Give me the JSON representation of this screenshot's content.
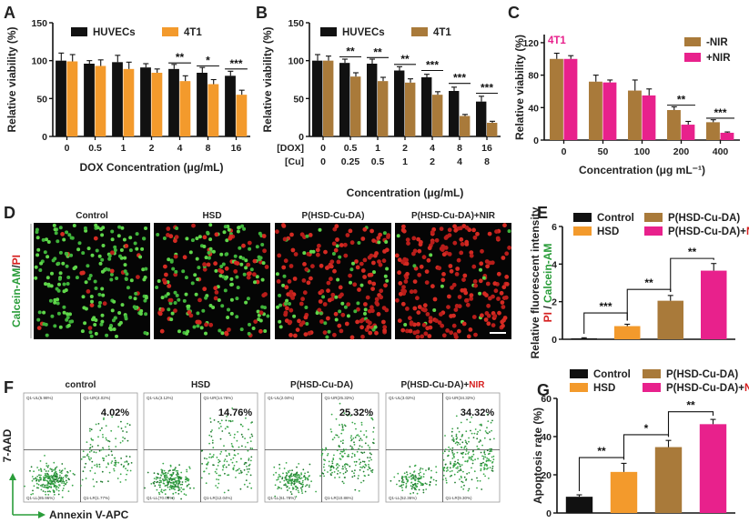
{
  "chart_data": [
    {
      "panel": "A",
      "type": "bar",
      "ylabel": "Relative viability (%)",
      "xlabel": "DOX Concentration (μg/mL)",
      "ylim": [
        0,
        150
      ],
      "yticks": [
        "0",
        "50",
        "100",
        "150"
      ],
      "categories": [
        "0",
        "0.5",
        "1",
        "2",
        "4",
        "8",
        "16"
      ],
      "series": [
        {
          "name": "HUVECs",
          "color": "#111111",
          "values": [
            100,
            96,
            98,
            91,
            89,
            84,
            80
          ],
          "errors": [
            10,
            4,
            9,
            5,
            6,
            7,
            6
          ]
        },
        {
          "name": "4T1",
          "color": "#f39a2c",
          "values": [
            99,
            93,
            89,
            84,
            73,
            69,
            55
          ],
          "errors": [
            9,
            8,
            9,
            5,
            7,
            6,
            6
          ]
        }
      ],
      "significance": [
        {
          "category": 4,
          "label": "**",
          "y": 97
        },
        {
          "category": 5,
          "label": "*",
          "y": 93
        },
        {
          "category": 6,
          "label": "***",
          "y": 89
        }
      ]
    },
    {
      "panel": "B",
      "type": "bar",
      "ylabel": "Relative viability (%)",
      "xlabel": "Concentration (μg/mL)",
      "ylim": [
        0,
        150
      ],
      "yticks": [
        "0",
        "50",
        "100",
        "150"
      ],
      "row1_label": "[DOX]",
      "row2_label": "[Cu]",
      "categories": [
        "0",
        "0.5",
        "1",
        "2",
        "4",
        "8",
        "16"
      ],
      "categories2": [
        "0",
        "0.25",
        "0.5",
        "1",
        "2",
        "4",
        "8"
      ],
      "series": [
        {
          "name": "HUVECs",
          "color": "#111111",
          "values": [
            100,
            97,
            96,
            87,
            78,
            60,
            46
          ],
          "errors": [
            8,
            5,
            6,
            5,
            4,
            5,
            7
          ]
        },
        {
          "name": "4T1",
          "color": "#a97a3a",
          "values": [
            100,
            79,
            73,
            71,
            55,
            27,
            18
          ],
          "errors": [
            6,
            5,
            5,
            5,
            4,
            2,
            2
          ]
        }
      ],
      "significance": [
        {
          "category": 1,
          "label": "**",
          "y": 105
        },
        {
          "category": 2,
          "label": "**",
          "y": 104
        },
        {
          "category": 3,
          "label": "**",
          "y": 95
        },
        {
          "category": 4,
          "label": "***",
          "y": 87
        },
        {
          "category": 5,
          "label": "***",
          "y": 70
        },
        {
          "category": 6,
          "label": "***",
          "y": 57
        }
      ]
    },
    {
      "panel": "C",
      "type": "bar",
      "cell_line": "4T1",
      "ylabel": "Relative viability (%)",
      "xlabel": "Concentration (μg mL⁻¹)",
      "ylim": [
        0,
        130
      ],
      "yticks": [
        "0",
        "40",
        "80",
        "120"
      ],
      "categories": [
        "0",
        "50",
        "100",
        "200",
        "400"
      ],
      "series": [
        {
          "name": "-NIR",
          "color": "#a97a3a",
          "values": [
            100,
            72,
            61,
            37,
            22
          ],
          "errors": [
            7,
            8,
            13,
            4,
            3
          ]
        },
        {
          "name": "+NIR",
          "color": "#e8218c",
          "values": [
            100,
            71,
            55,
            19,
            9
          ],
          "errors": [
            4,
            3,
            8,
            4,
            1
          ]
        }
      ],
      "significance": [
        {
          "category": 3,
          "label": "**",
          "y": 43
        },
        {
          "category": 4,
          "label": "***",
          "y": 27
        }
      ]
    },
    {
      "panel": "E",
      "type": "bar",
      "ylabel": "Relative fluorescent intensity",
      "ylabel_parts": [
        "PI",
        " / ",
        "Calcein-AM"
      ],
      "ylim": [
        0,
        6
      ],
      "yticks": [
        "0",
        "2",
        "4",
        "6"
      ],
      "categories": [
        "Control",
        "HSD",
        "P(HSD-Cu-DA)",
        "P(HSD-Cu-DA)+NIR"
      ],
      "legend_parts": [
        [
          "Control",
          ""
        ],
        [
          "HSD",
          ""
        ],
        [
          "P(HSD-Cu-DA)",
          ""
        ],
        [
          "P(HSD-Cu-DA)+",
          "NIR"
        ]
      ],
      "values": [
        0.05,
        0.7,
        2.05,
        3.65
      ],
      "errors": [
        0.03,
        0.1,
        0.28,
        0.38
      ],
      "colors": [
        "#111111",
        "#f39a2c",
        "#a97a3a",
        "#e8218c"
      ],
      "significance": [
        {
          "from": 0,
          "to": 1,
          "label": "***",
          "y": 1.4
        },
        {
          "from": 1,
          "to": 2,
          "label": "**",
          "y": 2.65
        },
        {
          "from": 2,
          "to": 3,
          "label": "**",
          "y": 4.3
        }
      ]
    },
    {
      "panel": "G",
      "type": "bar",
      "ylabel": "Apoptosis rate (%)",
      "ylim": [
        0,
        60
      ],
      "yticks": [
        "0",
        "20",
        "40",
        "60"
      ],
      "categories": [
        "Control",
        "HSD",
        "P(HSD-Cu-DA)",
        "P(HSD-Cu-DA)+NIR"
      ],
      "legend_parts": [
        [
          "Control",
          ""
        ],
        [
          "HSD",
          ""
        ],
        [
          "P(HSD-Cu-DA)",
          ""
        ],
        [
          "P(HSD-Cu-DA)+",
          "NIR"
        ]
      ],
      "values": [
        8.5,
        21.5,
        34.5,
        46.5
      ],
      "errors": [
        1.0,
        4.5,
        3.5,
        2.5
      ],
      "colors": [
        "#111111",
        "#f39a2c",
        "#a97a3a",
        "#e8218c"
      ],
      "significance": [
        {
          "from": 0,
          "to": 1,
          "label": "**",
          "y": 29
        },
        {
          "from": 1,
          "to": 2,
          "label": "*",
          "y": 41
        },
        {
          "from": 2,
          "to": 3,
          "label": "**",
          "y": 53
        }
      ]
    }
  ],
  "panel_labels": {
    "A": "A",
    "B": "B",
    "C": "C",
    "D": "D",
    "E": "E",
    "F": "F",
    "G": "G"
  },
  "microscopy": {
    "ylabel_green": "Calcein-AM",
    "ylabel_sep": "/",
    "ylabel_red": "PI",
    "titles": [
      "Control",
      "HSD",
      "P(HSD-Cu-DA)",
      "P(HSD-Cu-DA)+NIR"
    ],
    "red_fraction": [
      0.08,
      0.3,
      0.78,
      0.93
    ]
  },
  "flow": {
    "titles": [
      "control",
      "HSD",
      "P(HSD-Cu-DA)",
      "P(HSD-Cu-DA)+NIR"
    ],
    "title_last_parts": [
      "P(HSD-Cu-DA)+",
      "NIR"
    ],
    "percentages": [
      "4.02%",
      "14.76%",
      "25.32%",
      "34.32%"
    ],
    "quadrant_labels": [
      [
        "Q1-UL(5.98%)",
        "Q1-UR(4.02%)",
        "Q1-LL(85.96%)",
        "Q1-LR(1.77%)"
      ],
      [
        "Q1-UL(3.12%)",
        "Q1-UR(14.76%)",
        "Q1-LL(70.08%)",
        "Q1-LR(12.04%)"
      ],
      [
        "Q1-UL(2.04%)",
        "Q1-UR(25.32%)",
        "Q1-LL(61.78%)",
        "Q1-LR(10.86%)"
      ],
      [
        "Q1-UL(3.02%)",
        "Q1-UR(34.32%)",
        "Q1-LL(52.36%)",
        "Q1-LR(9.30%)"
      ]
    ],
    "y_axis": "7-AAD",
    "x_axis": "Annexin V-APC"
  },
  "colors": {
    "black": "#111111",
    "orange": "#f39a2c",
    "brown": "#a97a3a",
    "pink": "#e8218c",
    "green": "#2a9d3a",
    "red": "#d62020"
  }
}
